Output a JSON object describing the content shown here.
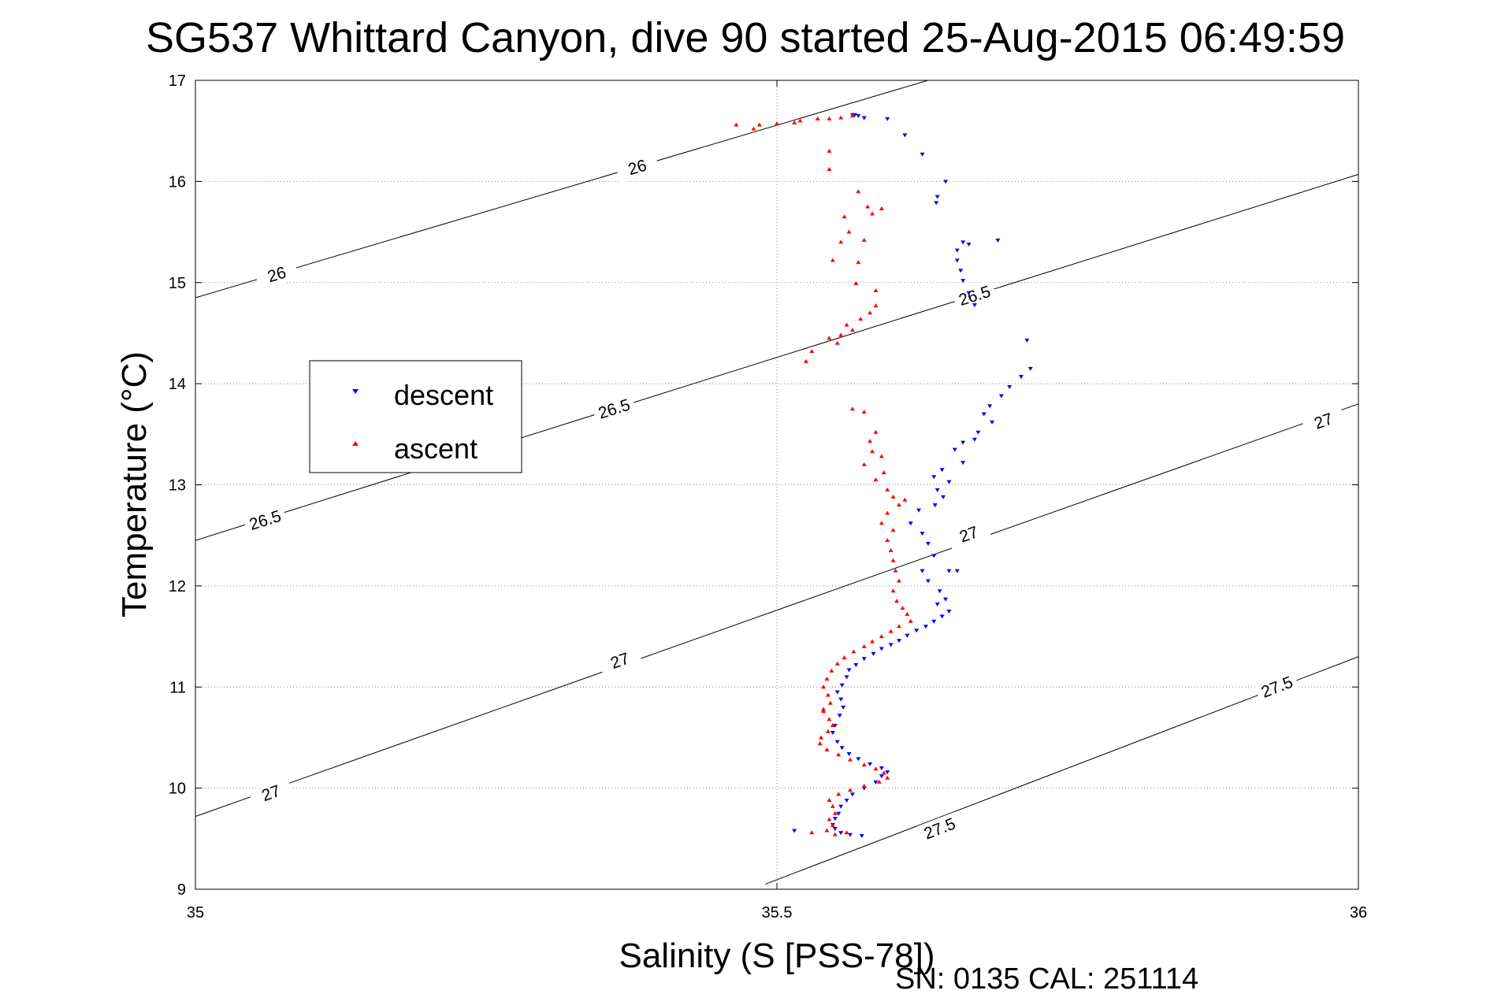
{
  "chart_data": {
    "type": "scatter",
    "title": "SG537 Whittard Canyon, dive 90 started 25-Aug-2015 06:49:59",
    "xlabel": "Salinity (S [PSS-78])",
    "ylabel": "Temperature (°C)",
    "xlim": [
      35,
      36
    ],
    "ylim": [
      9,
      17
    ],
    "x_ticks": [
      35,
      35.5,
      36
    ],
    "x_tick_labels": [
      "35",
      "35.5",
      "36"
    ],
    "y_ticks": [
      9,
      10,
      11,
      12,
      13,
      14,
      15,
      16,
      17
    ],
    "y_tick_labels": [
      "9",
      "10",
      "11",
      "12",
      "13",
      "14",
      "15",
      "16",
      "17"
    ],
    "grid": true,
    "legend_position": "upper-left",
    "footer": "SN: 0135  CAL: 251114",
    "contours": [
      {
        "level": "26",
        "p1": [
          35,
          14.85
        ],
        "p2": [
          35.63,
          17.0
        ],
        "labels": [
          [
            35.07,
            15.08
          ],
          [
            35.38,
            16.14
          ]
        ]
      },
      {
        "level": "26.5",
        "p1": [
          35,
          12.45
        ],
        "p2": [
          36,
          16.07
        ],
        "labels": [
          [
            35.06,
            12.65
          ],
          [
            35.36,
            13.75
          ],
          [
            35.67,
            14.87
          ]
        ]
      },
      {
        "level": "27",
        "p1": [
          35,
          9.72
        ],
        "p2": [
          36,
          13.8
        ],
        "labels": [
          [
            35.065,
            9.95
          ],
          [
            35.365,
            11.26
          ],
          [
            35.665,
            12.51
          ],
          [
            35.97,
            13.63
          ]
        ]
      },
      {
        "level": "27.5",
        "p1": [
          35.49,
          9.05
        ],
        "p2": [
          36,
          11.3
        ],
        "labels": [
          [
            35.64,
            9.6
          ],
          [
            35.93,
            11.0
          ]
        ]
      }
    ],
    "series": [
      {
        "name": "descent",
        "color": "#0000ff",
        "marker": "triangle-down",
        "points": [
          [
            35.565,
            16.66
          ],
          [
            35.567,
            16.66
          ],
          [
            35.57,
            16.65
          ],
          [
            35.575,
            16.63
          ],
          [
            35.595,
            16.62
          ],
          [
            35.61,
            16.46
          ],
          [
            35.625,
            16.27
          ],
          [
            35.645,
            16.0
          ],
          [
            35.638,
            15.85
          ],
          [
            35.637,
            15.79
          ],
          [
            35.66,
            15.4
          ],
          [
            35.665,
            15.38
          ],
          [
            35.69,
            15.42
          ],
          [
            35.655,
            15.32
          ],
          [
            35.655,
            15.22
          ],
          [
            35.658,
            15.12
          ],
          [
            35.66,
            15.02
          ],
          [
            35.665,
            14.9
          ],
          [
            35.67,
            14.78
          ],
          [
            35.715,
            14.43
          ],
          [
            35.718,
            14.15
          ],
          [
            35.71,
            14.07
          ],
          [
            35.7,
            13.97
          ],
          [
            35.693,
            13.88
          ],
          [
            35.683,
            13.78
          ],
          [
            35.678,
            13.7
          ],
          [
            35.685,
            13.62
          ],
          [
            35.673,
            13.52
          ],
          [
            35.67,
            13.45
          ],
          [
            35.66,
            13.42
          ],
          [
            35.653,
            13.35
          ],
          [
            35.66,
            13.22
          ],
          [
            35.642,
            13.15
          ],
          [
            35.635,
            13.08
          ],
          [
            35.648,
            13.03
          ],
          [
            35.638,
            12.95
          ],
          [
            35.643,
            12.88
          ],
          [
            35.636,
            12.8
          ],
          [
            35.622,
            12.75
          ],
          [
            35.615,
            12.62
          ],
          [
            35.625,
            12.52
          ],
          [
            35.63,
            12.42
          ],
          [
            35.635,
            12.3
          ],
          [
            35.648,
            12.15
          ],
          [
            35.655,
            12.15
          ],
          [
            35.625,
            12.15
          ],
          [
            35.63,
            12.05
          ],
          [
            35.64,
            11.95
          ],
          [
            35.645,
            11.87
          ],
          [
            35.638,
            11.82
          ],
          [
            35.648,
            11.75
          ],
          [
            35.642,
            11.7
          ],
          [
            35.635,
            11.65
          ],
          [
            35.628,
            11.6
          ],
          [
            35.62,
            11.56
          ],
          [
            35.612,
            11.51
          ],
          [
            35.605,
            11.46
          ],
          [
            35.598,
            11.42
          ],
          [
            35.59,
            11.38
          ],
          [
            35.583,
            11.33
          ],
          [
            35.575,
            11.28
          ],
          [
            35.568,
            11.22
          ],
          [
            35.562,
            11.17
          ],
          [
            35.56,
            11.1
          ],
          [
            35.556,
            11.02
          ],
          [
            35.552,
            10.95
          ],
          [
            35.555,
            10.88
          ],
          [
            35.557,
            10.8
          ],
          [
            35.554,
            10.72
          ],
          [
            35.55,
            10.62
          ],
          [
            35.548,
            10.55
          ],
          [
            35.552,
            10.46
          ],
          [
            35.556,
            10.4
          ],
          [
            35.562,
            10.34
          ],
          [
            35.57,
            10.29
          ],
          [
            35.58,
            10.24
          ],
          [
            35.59,
            10.2
          ],
          [
            35.595,
            10.16
          ],
          [
            35.59,
            10.12
          ],
          [
            35.585,
            10.06
          ],
          [
            35.575,
            10.0
          ],
          [
            35.565,
            9.94
          ],
          [
            35.56,
            9.88
          ],
          [
            35.555,
            9.82
          ],
          [
            35.553,
            9.75
          ],
          [
            35.55,
            9.7
          ],
          [
            35.548,
            9.64
          ],
          [
            35.55,
            9.6
          ],
          [
            35.555,
            9.56
          ],
          [
            35.563,
            9.54
          ],
          [
            35.573,
            9.53
          ],
          [
            35.515,
            9.58
          ]
        ]
      },
      {
        "name": "ascent",
        "color": "#ff0000",
        "marker": "triangle-up",
        "points": [
          [
            35.565,
            16.65
          ],
          [
            35.555,
            16.63
          ],
          [
            35.545,
            16.62
          ],
          [
            35.535,
            16.62
          ],
          [
            35.52,
            16.6
          ],
          [
            35.515,
            16.58
          ],
          [
            35.5,
            16.57
          ],
          [
            35.485,
            16.56
          ],
          [
            35.465,
            16.56
          ],
          [
            35.48,
            16.52
          ],
          [
            35.545,
            16.3
          ],
          [
            35.545,
            16.12
          ],
          [
            35.57,
            15.9
          ],
          [
            35.578,
            15.75
          ],
          [
            35.59,
            15.73
          ],
          [
            35.582,
            15.68
          ],
          [
            35.558,
            15.65
          ],
          [
            35.562,
            15.5
          ],
          [
            35.555,
            15.4
          ],
          [
            35.575,
            15.42
          ],
          [
            35.548,
            15.22
          ],
          [
            35.57,
            15.2
          ],
          [
            35.568,
            14.99
          ],
          [
            35.585,
            14.92
          ],
          [
            35.585,
            14.77
          ],
          [
            35.58,
            14.7
          ],
          [
            35.572,
            14.64
          ],
          [
            35.56,
            14.58
          ],
          [
            35.565,
            14.53
          ],
          [
            35.555,
            14.48
          ],
          [
            35.545,
            14.45
          ],
          [
            35.552,
            14.4
          ],
          [
            35.53,
            14.32
          ],
          [
            35.525,
            14.22
          ],
          [
            35.565,
            13.75
          ],
          [
            35.575,
            13.72
          ],
          [
            35.585,
            13.52
          ],
          [
            35.58,
            13.43
          ],
          [
            35.582,
            13.33
          ],
          [
            35.59,
            13.28
          ],
          [
            35.575,
            13.2
          ],
          [
            35.592,
            13.12
          ],
          [
            35.585,
            13.05
          ],
          [
            35.595,
            12.95
          ],
          [
            35.6,
            12.88
          ],
          [
            35.605,
            12.8
          ],
          [
            35.61,
            12.85
          ],
          [
            35.595,
            12.72
          ],
          [
            35.59,
            12.62
          ],
          [
            35.6,
            12.55
          ],
          [
            35.595,
            12.45
          ],
          [
            35.598,
            12.35
          ],
          [
            35.6,
            12.25
          ],
          [
            35.602,
            12.15
          ],
          [
            35.605,
            12.05
          ],
          [
            35.6,
            11.95
          ],
          [
            35.603,
            11.85
          ],
          [
            35.608,
            11.78
          ],
          [
            35.612,
            11.72
          ],
          [
            35.615,
            11.65
          ],
          [
            35.605,
            11.6
          ],
          [
            35.598,
            11.55
          ],
          [
            35.59,
            11.5
          ],
          [
            35.582,
            11.45
          ],
          [
            35.575,
            11.4
          ],
          [
            35.566,
            11.35
          ],
          [
            35.558,
            11.29
          ],
          [
            35.552,
            11.23
          ],
          [
            35.547,
            11.16
          ],
          [
            35.543,
            11.08
          ],
          [
            35.54,
            11.0
          ],
          [
            35.544,
            10.92
          ],
          [
            35.546,
            10.84
          ],
          [
            35.54,
            10.76
          ],
          [
            35.545,
            10.68
          ],
          [
            35.548,
            10.62
          ],
          [
            35.544,
            10.56
          ],
          [
            35.538,
            10.5
          ],
          [
            35.537,
            10.44
          ],
          [
            35.543,
            10.38
          ],
          [
            35.553,
            10.33
          ],
          [
            35.563,
            10.28
          ],
          [
            35.575,
            10.23
          ],
          [
            35.585,
            10.19
          ],
          [
            35.592,
            10.15
          ],
          [
            35.595,
            10.1
          ],
          [
            35.588,
            10.06
          ],
          [
            35.575,
            10.02
          ],
          [
            35.563,
            9.98
          ],
          [
            35.553,
            9.94
          ],
          [
            35.545,
            9.88
          ],
          [
            35.548,
            9.82
          ],
          [
            35.55,
            9.75
          ],
          [
            35.545,
            9.69
          ],
          [
            35.548,
            9.63
          ],
          [
            35.543,
            9.58
          ],
          [
            35.55,
            9.54
          ],
          [
            35.53,
            9.56
          ],
          [
            35.56,
            9.56
          ],
          [
            35.54,
            10.78
          ]
        ]
      }
    ]
  }
}
